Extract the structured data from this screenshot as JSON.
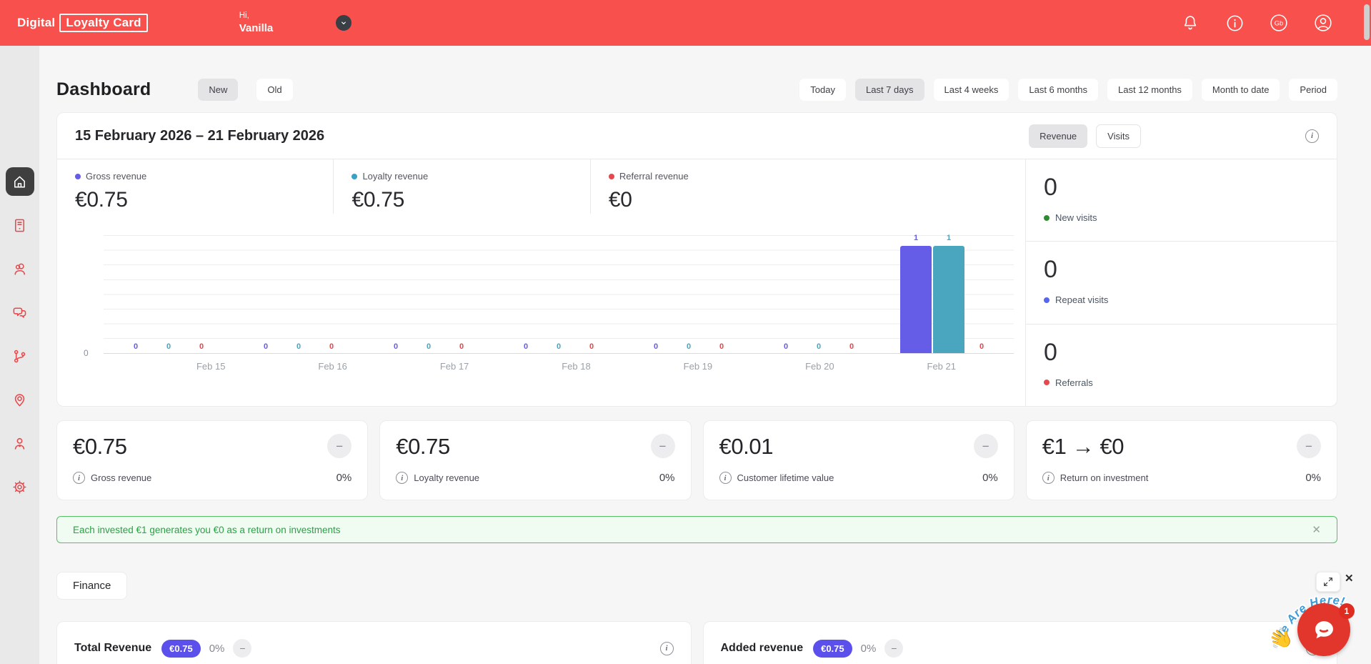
{
  "header": {
    "logo_part1": "Digital",
    "logo_part2": "Loyalty Card",
    "greeting": "Hi,",
    "username": "Vanilla",
    "lang": "Gb",
    "icons": [
      "bell-icon",
      "info-icon",
      "language-icon",
      "account-icon"
    ]
  },
  "sidebar": {
    "items": [
      {
        "icon": "home",
        "active": true
      },
      {
        "icon": "loyalty-card",
        "active": false
      },
      {
        "icon": "customers",
        "active": false
      },
      {
        "icon": "feedback",
        "active": false
      },
      {
        "icon": "referrals",
        "active": false
      },
      {
        "icon": "locations",
        "active": false
      },
      {
        "icon": "staff",
        "active": false
      },
      {
        "icon": "settings",
        "active": false
      }
    ]
  },
  "page": {
    "title": "Dashboard",
    "view_toggle": [
      {
        "label": "New",
        "selected": true
      },
      {
        "label": "Old",
        "selected": false
      }
    ],
    "period_buttons": [
      {
        "label": "Today",
        "selected": false
      },
      {
        "label": "Last 7 days",
        "selected": true
      },
      {
        "label": "Last 4 weeks",
        "selected": false
      },
      {
        "label": "Last 6 months",
        "selected": false
      },
      {
        "label": "Last 12 months",
        "selected": false
      },
      {
        "label": "Month to date",
        "selected": false
      },
      {
        "label": "Period",
        "selected": false
      }
    ]
  },
  "chart_card": {
    "date_range": "15 February 2026 – 21 February 2026",
    "mode_toggle": [
      {
        "label": "Revenue",
        "selected": true
      },
      {
        "label": "Visits",
        "selected": false
      }
    ],
    "legend": [
      {
        "label": "Gross revenue",
        "value": "€0.75",
        "color": "#655CE8"
      },
      {
        "label": "Loyalty revenue",
        "value": "€0.75",
        "color": "#39A0C6"
      },
      {
        "label": "Referral revenue",
        "value": "€0",
        "color": "#E5484D"
      }
    ],
    "side_stats": [
      {
        "value": "0",
        "label": "New visits",
        "color": "#2F8B2F"
      },
      {
        "value": "0",
        "label": "Repeat visits",
        "color": "#5667EE"
      },
      {
        "value": "0",
        "label": "Referrals",
        "color": "#E5484D"
      }
    ]
  },
  "chart_data": {
    "type": "bar",
    "categories": [
      "Feb 15",
      "Feb 16",
      "Feb 17",
      "Feb 18",
      "Feb 19",
      "Feb 20",
      "Feb 21"
    ],
    "series": [
      {
        "name": "Gross revenue",
        "color": "#655CE8",
        "values": [
          0,
          0,
          0,
          0,
          0,
          0,
          1
        ]
      },
      {
        "name": "Loyalty revenue",
        "color": "#4AA6BE",
        "values": [
          0,
          0,
          0,
          0,
          0,
          0,
          1
        ]
      },
      {
        "name": "Referral revenue",
        "color": "#E5484D",
        "values": [
          0,
          0,
          0,
          0,
          0,
          0,
          0
        ]
      }
    ],
    "ylim": [
      0,
      1
    ],
    "y_tick_labels_shown": [
      "0"
    ],
    "grid": true,
    "legend_position": "top",
    "data_labels": true
  },
  "stat_cards": [
    {
      "value": "€0.75",
      "label": "Gross revenue",
      "percent": "0%"
    },
    {
      "value": "€0.75",
      "label": "Loyalty revenue",
      "percent": "0%"
    },
    {
      "value": "€0.01",
      "label": "Customer lifetime value",
      "percent": "0%"
    },
    {
      "value": "€1 → €0",
      "label": "Return on investment",
      "percent": "0%"
    }
  ],
  "alert": {
    "text": "Each invested €1 generates you €0 as a return on investments"
  },
  "finance": {
    "label": "Finance"
  },
  "bottom_cards": [
    {
      "title": "Total Revenue",
      "badge": "€0.75",
      "percent": "0%"
    },
    {
      "title": "Added revenue",
      "badge": "€0.75",
      "percent": "0%"
    }
  ],
  "chat": {
    "banner": "We Are Here!",
    "badge_count": "1",
    "hand": "👋"
  },
  "colors": {
    "header": "#F8504C",
    "accent_purple": "#5b50eb",
    "alert_green": "#27a344"
  }
}
